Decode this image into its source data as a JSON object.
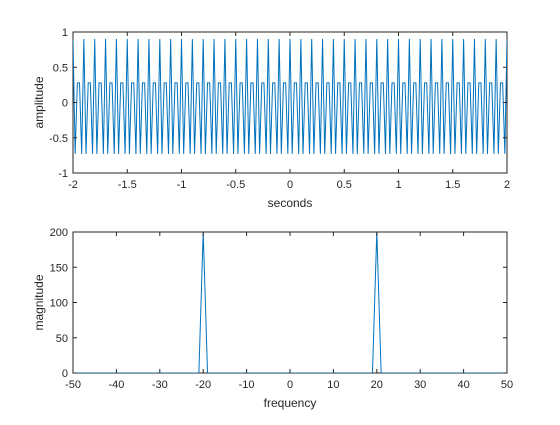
{
  "chart_data": [
    {
      "type": "line",
      "xlabel": "seconds",
      "ylabel": "amplitude",
      "xlim": [
        -2,
        2
      ],
      "ylim": [
        -1,
        1
      ],
      "xticks": [
        -2,
        -1.5,
        -1,
        -0.5,
        0,
        0.5,
        1,
        1.5,
        2
      ],
      "xtick_labels": [
        "-2",
        "-1.5",
        "-1",
        "-0.5",
        "0",
        "0.5",
        "1",
        "1.5",
        "2"
      ],
      "yticks": [
        -1,
        -0.5,
        0,
        0.5,
        1
      ],
      "ytick_labels": [
        "-1",
        "-0.5",
        "0",
        "0.5",
        "1"
      ],
      "grid": false,
      "color": "#0072BD",
      "series": [
        {
          "signal": "sine",
          "amplitude": 0.9,
          "frequency_hz": 20,
          "sample_rate_hz": 50,
          "x_start": -2,
          "x_end": 2
        }
      ]
    },
    {
      "type": "line",
      "xlabel": "frequency",
      "ylabel": "magnitude",
      "xlim": [
        -50,
        50
      ],
      "ylim": [
        0,
        200
      ],
      "xticks": [
        -50,
        -40,
        -30,
        -20,
        -10,
        0,
        10,
        20,
        30,
        40,
        50
      ],
      "xtick_labels": [
        "-50",
        "-40",
        "-30",
        "-20",
        "-10",
        "0",
        "10",
        "20",
        "30",
        "40",
        "50"
      ],
      "yticks": [
        0,
        50,
        100,
        150,
        200
      ],
      "ytick_labels": [
        "0",
        "50",
        "100",
        "150",
        "200"
      ],
      "grid": false,
      "color": "#0072BD",
      "series": [
        {
          "x": [
            -50,
            -21,
            -20,
            -19,
            19,
            20,
            21,
            50
          ],
          "y": [
            0,
            0,
            200,
            0,
            0,
            200,
            0,
            0
          ]
        }
      ]
    }
  ]
}
